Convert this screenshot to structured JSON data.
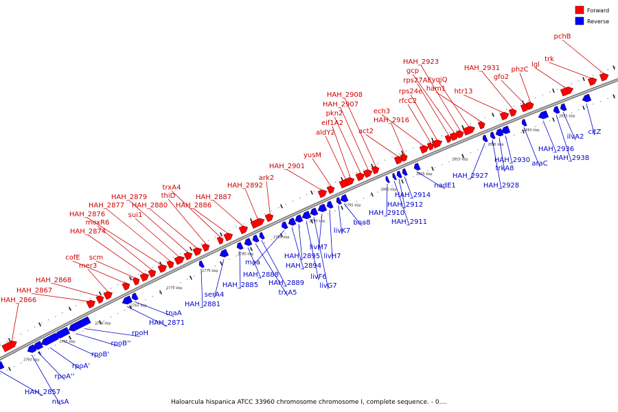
{
  "caption": "Haloarcula hispanica ATCC 33960 chromosome chromosome I, complete sequence. - 0....",
  "legend": {
    "forward_label": "Forward",
    "reverse_label": "Reverse",
    "forward_color": "#ff0000",
    "reverse_color": "#0000ff"
  },
  "backbone_color": "#999999",
  "ticks": [
    "2750 kbp",
    "2755 kbp",
    "2760 kbp",
    "2765 kbp",
    "2770 kbp",
    "2775 kbp",
    "2780 kbp",
    "2785 kbp",
    "2790 kbp",
    "2795 kbp",
    "2800 kbp",
    "2805 kbp",
    "2810 kbp",
    "2815 kbp",
    "2820 kbp",
    "2825 kbp"
  ],
  "forward_genes": [
    "HAH_2866",
    "HAH_2867",
    "HAH_2868",
    "mer3",
    "cofE",
    "scm",
    "HAH_2874",
    "moxR6",
    "HAH_2876",
    "HAH_2877",
    "sui1",
    "HAH_2879",
    "HAH_2880",
    "thiD",
    "trxA4",
    "HAH_2886",
    "HAH_2887",
    "HAH_2892",
    "ark2",
    "HAH_2901",
    "yusM",
    "aldY2",
    "eif1A2",
    "pkn2",
    "HAH_2907",
    "HAH_2908",
    "act2",
    "HAH_2916",
    "ech3",
    "rfcC2",
    "rps24e",
    "rps27AE",
    "gcp",
    "HAH_2923",
    "yqjQ",
    "ham1",
    "htr13",
    "HAH_2931",
    "gfo2",
    "phzC",
    "lgl",
    "trk",
    "pchB"
  ],
  "reverse_genes": [
    "HAH_2857",
    "nusA",
    "rpoA''",
    "rpoA'",
    "rpoB'",
    "rpoB''",
    "rpoH",
    "HAH_2871",
    "tnaA",
    "HAH_2881",
    "serA4",
    "HAH_2885",
    "HAH_2888",
    "trxA5",
    "HAH_2889",
    "maa",
    "HAH_2894",
    "HAH_2895",
    "livF6",
    "livG7",
    "livM7",
    "livH7",
    "livK7",
    "boa8",
    "HAH_2910",
    "HAH_2911",
    "HAH_2912",
    "HAH_2914",
    "nadE1",
    "HAH_2927",
    "HAH_2928",
    "trkA8",
    "HAH_2930",
    "araC",
    "HAH_2936",
    "HAH_2938",
    "ilvA2",
    "citZ"
  ]
}
